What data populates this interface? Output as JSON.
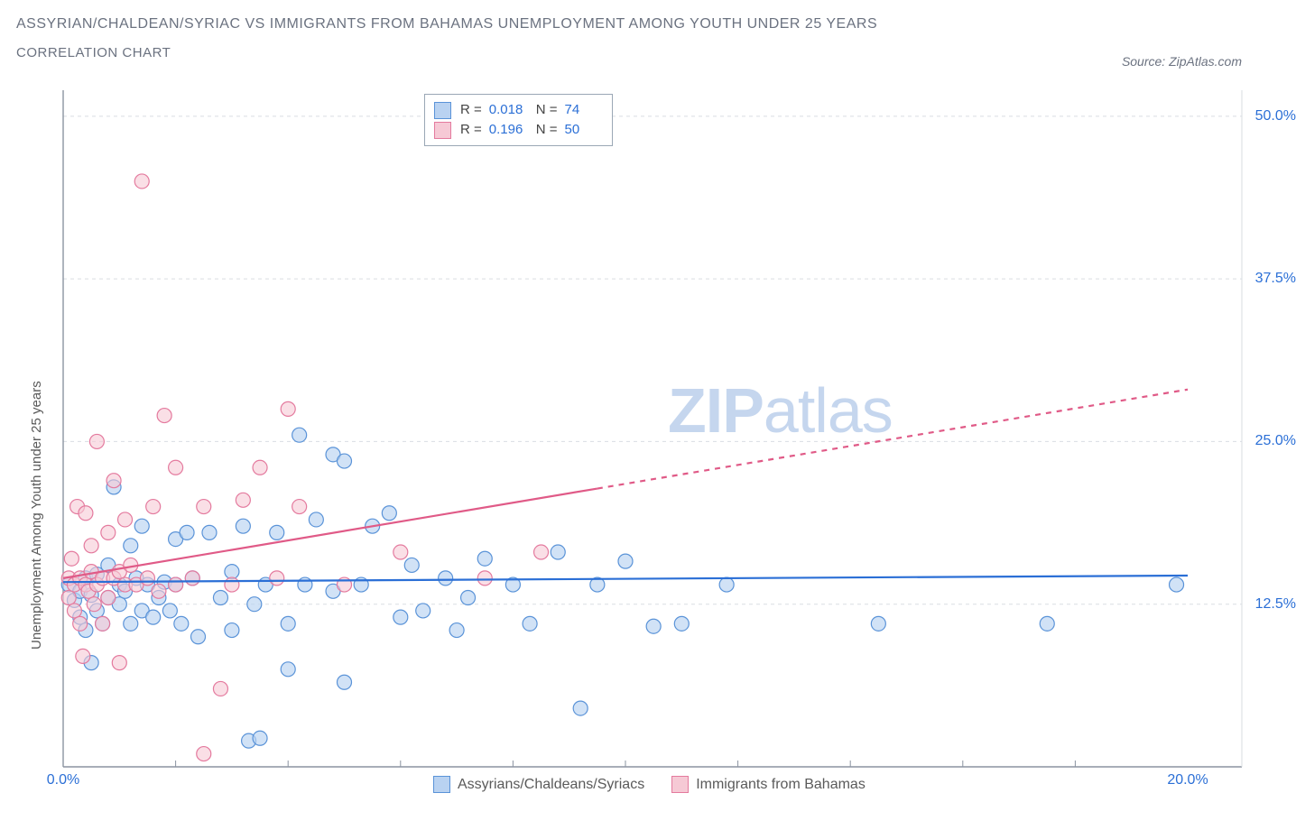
{
  "title": "ASSYRIAN/CHALDEAN/SYRIAC VS IMMIGRANTS FROM BAHAMAS UNEMPLOYMENT AMONG YOUTH UNDER 25 YEARS",
  "subtitle": "CORRELATION CHART",
  "source_label": "Source: ",
  "source_name": "ZipAtlas.com",
  "y_axis_label": "Unemployment Among Youth under 25 years",
  "watermark_a": "ZIP",
  "watermark_b": "atlas",
  "chart": {
    "type": "scatter",
    "xlim": [
      0,
      20
    ],
    "ylim": [
      0,
      52
    ],
    "x_ticks": [
      0,
      20
    ],
    "x_tick_labels": [
      "0.0%",
      "20.0%"
    ],
    "y_ticks": [
      12.5,
      25.0,
      37.5,
      50.0
    ],
    "y_tick_labels": [
      "12.5%",
      "25.0%",
      "37.5%",
      "50.0%"
    ],
    "x_minor_ticks": [
      2,
      4,
      6,
      8,
      10,
      12,
      14,
      16,
      18
    ],
    "grid_color": "#d9dde2",
    "axis_color": "#8b94a1",
    "background_color": "#ffffff",
    "marker_radius": 8,
    "marker_stroke_width": 1.2,
    "trend_line_width": 2.2,
    "series": [
      {
        "name": "Assyrians/Chaldeans/Syriacs",
        "fill": "#b9d2f1",
        "stroke": "#5a93d8",
        "fill_opacity": 0.65,
        "R": "0.018",
        "N": "74",
        "trend": {
          "y_at_xmin": 14.2,
          "y_at_xmax": 14.7,
          "solid_until_x": 20,
          "color": "#2b6fd6"
        },
        "points": [
          [
            0.1,
            14.0
          ],
          [
            0.2,
            12.8
          ],
          [
            0.3,
            13.5
          ],
          [
            0.3,
            11.5
          ],
          [
            0.4,
            14.5
          ],
          [
            0.4,
            10.5
          ],
          [
            0.5,
            8.0
          ],
          [
            0.5,
            13.2
          ],
          [
            0.6,
            12.0
          ],
          [
            0.6,
            14.8
          ],
          [
            0.7,
            11.0
          ],
          [
            0.8,
            13.0
          ],
          [
            0.8,
            15.5
          ],
          [
            0.9,
            21.5
          ],
          [
            1.0,
            12.5
          ],
          [
            1.0,
            14.0
          ],
          [
            1.1,
            13.5
          ],
          [
            1.2,
            17.0
          ],
          [
            1.2,
            11.0
          ],
          [
            1.3,
            14.5
          ],
          [
            1.4,
            12.0
          ],
          [
            1.4,
            18.5
          ],
          [
            1.5,
            14.0
          ],
          [
            1.6,
            11.5
          ],
          [
            1.7,
            13.0
          ],
          [
            1.8,
            14.2
          ],
          [
            1.9,
            12.0
          ],
          [
            2.0,
            17.5
          ],
          [
            2.0,
            14.0
          ],
          [
            2.1,
            11.0
          ],
          [
            2.2,
            18.0
          ],
          [
            2.3,
            14.5
          ],
          [
            2.4,
            10.0
          ],
          [
            2.6,
            18.0
          ],
          [
            2.8,
            13.0
          ],
          [
            3.0,
            10.5
          ],
          [
            3.0,
            15.0
          ],
          [
            3.2,
            18.5
          ],
          [
            3.3,
            2.0
          ],
          [
            3.4,
            12.5
          ],
          [
            3.5,
            2.2
          ],
          [
            3.6,
            14.0
          ],
          [
            3.8,
            18.0
          ],
          [
            4.0,
            11.0
          ],
          [
            4.0,
            7.5
          ],
          [
            4.2,
            25.5
          ],
          [
            4.3,
            14.0
          ],
          [
            4.5,
            19.0
          ],
          [
            4.8,
            24.0
          ],
          [
            4.8,
            13.5
          ],
          [
            5.0,
            23.5
          ],
          [
            5.0,
            6.5
          ],
          [
            5.3,
            14.0
          ],
          [
            5.5,
            18.5
          ],
          [
            5.8,
            19.5
          ],
          [
            6.0,
            11.5
          ],
          [
            6.2,
            15.5
          ],
          [
            6.4,
            12.0
          ],
          [
            6.8,
            14.5
          ],
          [
            7.0,
            10.5
          ],
          [
            7.2,
            13.0
          ],
          [
            7.5,
            16.0
          ],
          [
            8.0,
            14.0
          ],
          [
            8.3,
            11.0
          ],
          [
            8.8,
            16.5
          ],
          [
            9.2,
            4.5
          ],
          [
            9.5,
            14.0
          ],
          [
            10.0,
            15.8
          ],
          [
            10.5,
            10.8
          ],
          [
            11.0,
            11.0
          ],
          [
            11.8,
            14.0
          ],
          [
            14.5,
            11.0
          ],
          [
            17.5,
            11.0
          ],
          [
            19.8,
            14.0
          ]
        ]
      },
      {
        "name": "Immigrants from Bahamas",
        "fill": "#f6c9d5",
        "stroke": "#e47a9e",
        "fill_opacity": 0.6,
        "R": "0.196",
        "N": "50",
        "trend": {
          "y_at_xmin": 14.5,
          "y_at_xmax": 29.0,
          "solid_until_x": 9.5,
          "color": "#e05a87"
        },
        "points": [
          [
            0.1,
            13.0
          ],
          [
            0.1,
            14.5
          ],
          [
            0.15,
            16.0
          ],
          [
            0.2,
            12.0
          ],
          [
            0.2,
            14.0
          ],
          [
            0.25,
            20.0
          ],
          [
            0.3,
            11.0
          ],
          [
            0.3,
            14.5
          ],
          [
            0.35,
            8.5
          ],
          [
            0.4,
            14.0
          ],
          [
            0.4,
            19.5
          ],
          [
            0.45,
            13.5
          ],
          [
            0.5,
            15.0
          ],
          [
            0.5,
            17.0
          ],
          [
            0.55,
            12.5
          ],
          [
            0.6,
            14.0
          ],
          [
            0.6,
            25.0
          ],
          [
            0.7,
            14.5
          ],
          [
            0.7,
            11.0
          ],
          [
            0.8,
            13.0
          ],
          [
            0.8,
            18.0
          ],
          [
            0.9,
            14.5
          ],
          [
            0.9,
            22.0
          ],
          [
            1.0,
            15.0
          ],
          [
            1.0,
            8.0
          ],
          [
            1.1,
            14.0
          ],
          [
            1.1,
            19.0
          ],
          [
            1.2,
            15.5
          ],
          [
            1.3,
            14.0
          ],
          [
            1.4,
            45.0
          ],
          [
            1.5,
            14.5
          ],
          [
            1.6,
            20.0
          ],
          [
            1.7,
            13.5
          ],
          [
            1.8,
            27.0
          ],
          [
            2.0,
            14.0
          ],
          [
            2.0,
            23.0
          ],
          [
            2.3,
            14.5
          ],
          [
            2.5,
            20.0
          ],
          [
            2.5,
            1.0
          ],
          [
            2.8,
            6.0
          ],
          [
            3.0,
            14.0
          ],
          [
            3.2,
            20.5
          ],
          [
            3.5,
            23.0
          ],
          [
            3.8,
            14.5
          ],
          [
            4.0,
            27.5
          ],
          [
            4.2,
            20.0
          ],
          [
            5.0,
            14.0
          ],
          [
            6.0,
            16.5
          ],
          [
            7.5,
            14.5
          ],
          [
            8.5,
            16.5
          ]
        ]
      }
    ]
  },
  "legend_top": {
    "r_label": "R =",
    "n_label": "N ="
  },
  "colors": {
    "title_text": "#6b7280",
    "tick_text": "#2b6fd6"
  }
}
